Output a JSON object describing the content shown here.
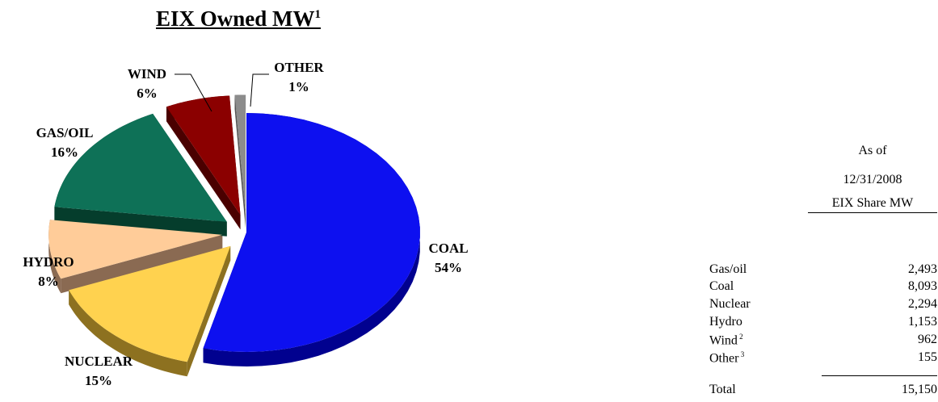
{
  "title": "EIX Owned MW",
  "title_footnote": "1",
  "chart_data": {
    "type": "pie",
    "title": "EIX Owned MW",
    "slices": [
      {
        "name": "COAL",
        "percent": 54,
        "color": "#0d10f0",
        "side": "#01018f",
        "exploded": false
      },
      {
        "name": "NUCLEAR",
        "percent": 15,
        "color": "#ffd24f",
        "side": "#8d7120",
        "exploded": true
      },
      {
        "name": "HYDRO",
        "percent": 8,
        "color": "#ffcc99",
        "side": "#8a6a52",
        "exploded": true
      },
      {
        "name": "GAS/OIL",
        "percent": 16,
        "color": "#0e7157",
        "side": "#053d2c",
        "exploded": true
      },
      {
        "name": "WIND",
        "percent": 6,
        "color": "#8b0000",
        "side": "#4a0000",
        "exploded": true
      },
      {
        "name": "OTHER",
        "percent": 1,
        "color": "#8c8c8c",
        "side": "#555555",
        "exploded": true
      }
    ],
    "labels": [
      {
        "name": "COAL",
        "pct": "54%"
      },
      {
        "name": "NUCLEAR",
        "pct": "15%"
      },
      {
        "name": "HYDRO",
        "pct": "8%"
      },
      {
        "name": "GAS/OIL",
        "pct": "16%"
      },
      {
        "name": "WIND",
        "pct": "6%"
      },
      {
        "name": "OTHER",
        "pct": "1%"
      }
    ]
  },
  "table": {
    "header_line1": "As of",
    "header_line2": "12/31/2008",
    "header_line3": "EIX Share MW",
    "rows": [
      {
        "label": "Gas/oil",
        "sup": "",
        "value": "2,493"
      },
      {
        "label": "Coal",
        "sup": "",
        "value": "8,093"
      },
      {
        "label": "Nuclear",
        "sup": "",
        "value": "2,294"
      },
      {
        "label": "Hydro",
        "sup": "",
        "value": "1,153"
      },
      {
        "label": "Wind",
        "sup": "2",
        "value": "962"
      },
      {
        "label": "Other",
        "sup": "3",
        "value": "155"
      }
    ],
    "total_label": "Total",
    "total_value": "15,150"
  }
}
